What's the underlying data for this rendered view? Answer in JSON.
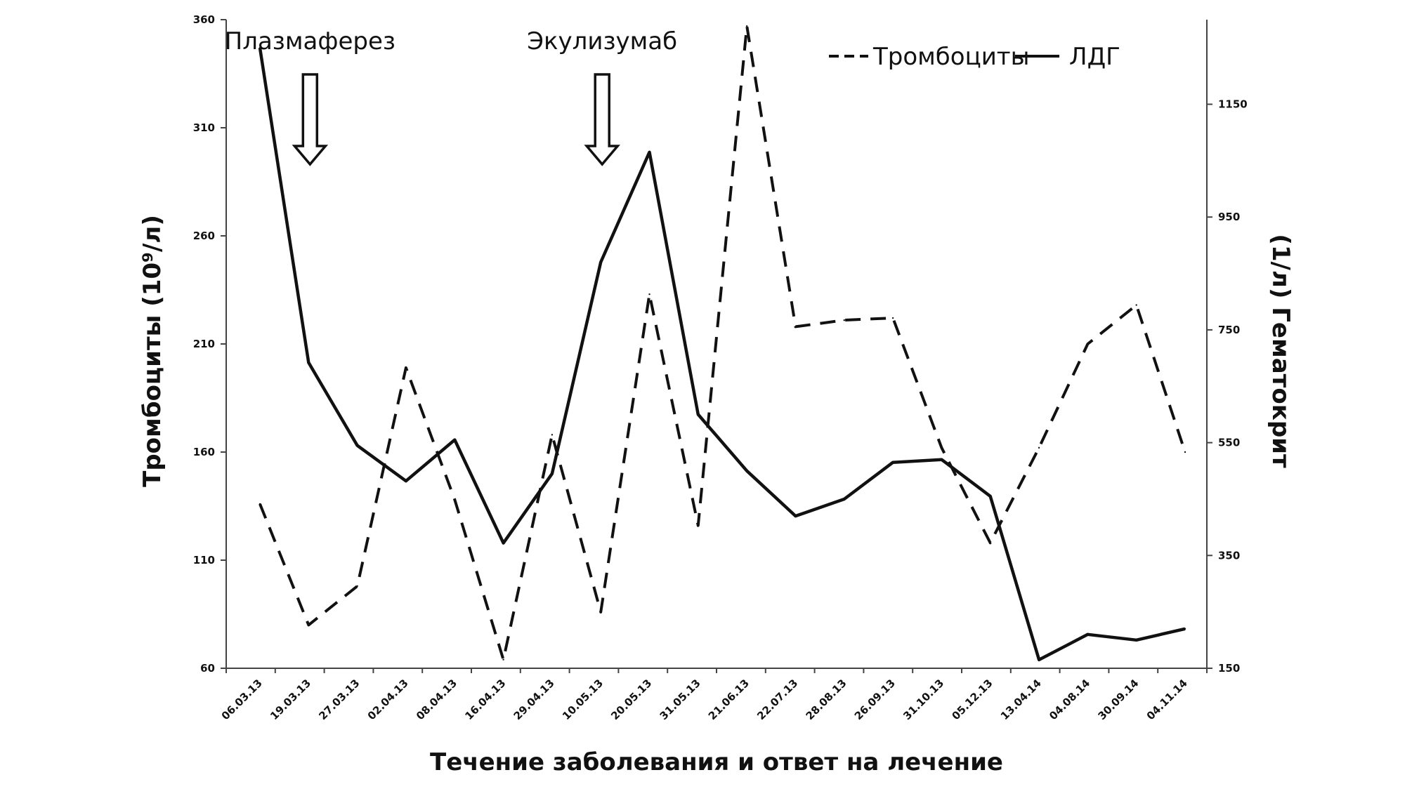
{
  "chart_data": {
    "type": "line",
    "categories": [
      "06.03.13",
      "19.03.13",
      "27.03.13",
      "02.04.13",
      "08.04.13",
      "16.04.13",
      "29.04.13",
      "10.05.13",
      "20.05.13",
      "31.05.13",
      "21.06.13",
      "22.07.13",
      "28.08.13",
      "26.09.13",
      "31.10.13",
      "05.12.13",
      "13.04.14",
      "04.08.14",
      "30.09.14",
      "04.11.14"
    ],
    "series": [
      {
        "name": "Тромбоциты",
        "axis": "left",
        "style": "dashed",
        "color": "#111111",
        "values": [
          136,
          80,
          98,
          199,
          138,
          64,
          168,
          86,
          233,
          126,
          357,
          218,
          221,
          222,
          162,
          118,
          162,
          210,
          228,
          160
        ]
      },
      {
        "name": "ЛДГ",
        "axis": "right",
        "style": "solid",
        "color": "#111111",
        "values": [
          1250,
          692,
          545,
          482,
          555,
          372,
          495,
          870,
          1065,
          600,
          500,
          420,
          450,
          515,
          520,
          455,
          165,
          210,
          200,
          220
        ]
      }
    ],
    "y_left": {
      "label": "Тромбоциты (10⁹/л)",
      "ticks": [
        360,
        310,
        260,
        210,
        160,
        110,
        60
      ],
      "range": [
        60,
        360
      ]
    },
    "y_right": {
      "label": "(1/л) Гематокрит",
      "ticks": [
        1150,
        950,
        750,
        550,
        350,
        150
      ],
      "range": [
        150,
        1300
      ]
    },
    "xlabel": "Течение заболевания и ответ на лечение",
    "legend": {
      "position": "top-right"
    },
    "annotations": [
      {
        "text": "Плазмаферез",
        "category_index": 1
      },
      {
        "text": "Экулизумаб",
        "category_index": 7
      }
    ],
    "grid": false
  }
}
